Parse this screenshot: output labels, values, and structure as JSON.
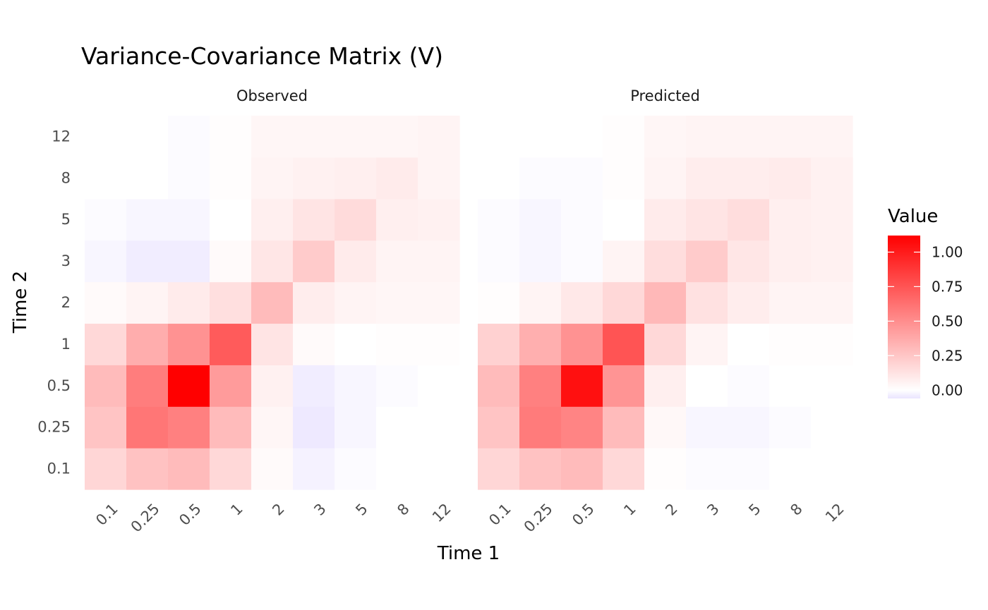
{
  "chart_data": {
    "type": "heatmap",
    "title": "Variance-Covariance Matrix (V)",
    "xlabel": "Time 1",
    "ylabel": "Time 2",
    "categories": [
      "0.1",
      "0.25",
      "0.5",
      "1",
      "2",
      "3",
      "5",
      "8",
      "12"
    ],
    "colorscale": {
      "low": "#EAE4FF",
      "mid": "#FFFFFF",
      "high": "#FF0000",
      "midpoint": 0,
      "range": [
        -0.06,
        1.12
      ]
    },
    "legend": {
      "title": "Value",
      "position": "right",
      "ticks": [
        "0.00",
        "0.25",
        "0.50",
        "0.75",
        "1.00"
      ],
      "tick_values": [
        0,
        0.25,
        0.5,
        0.75,
        1.0
      ]
    },
    "panels": [
      {
        "name": "Observed",
        "rows": [
          {
            "y": "0.1",
            "values": [
              0.18,
              0.27,
              0.3,
              0.17,
              0.02,
              -0.03,
              -0.01,
              0.0,
              0.0
            ]
          },
          {
            "y": "0.25",
            "values": [
              0.26,
              0.6,
              0.56,
              0.3,
              0.04,
              -0.05,
              -0.02,
              0.0,
              0.0
            ]
          },
          {
            "y": "0.5",
            "values": [
              0.3,
              0.57,
              1.12,
              0.44,
              0.06,
              -0.04,
              -0.02,
              -0.01,
              0.0
            ]
          },
          {
            "y": "1",
            "values": [
              0.17,
              0.36,
              0.48,
              0.72,
              0.12,
              0.02,
              0.0,
              0.01,
              0.01
            ]
          },
          {
            "y": "2",
            "values": [
              0.02,
              0.05,
              0.09,
              0.14,
              0.3,
              0.08,
              0.05,
              0.04,
              0.04
            ]
          },
          {
            "y": "3",
            "values": [
              -0.02,
              -0.04,
              -0.04,
              0.02,
              0.11,
              0.23,
              0.09,
              0.05,
              0.05
            ]
          },
          {
            "y": "5",
            "values": [
              -0.01,
              -0.02,
              -0.02,
              0.0,
              0.07,
              0.12,
              0.16,
              0.07,
              0.06
            ]
          },
          {
            "y": "8",
            "values": [
              0.0,
              0.0,
              -0.01,
              0.01,
              0.05,
              0.06,
              0.07,
              0.09,
              0.05
            ]
          },
          {
            "y": "12",
            "values": [
              0.0,
              0.0,
              -0.01,
              0.01,
              0.04,
              0.04,
              0.04,
              0.04,
              0.05
            ]
          }
        ]
      },
      {
        "name": "Predicted",
        "rows": [
          {
            "y": "0.1",
            "values": [
              0.18,
              0.27,
              0.3,
              0.17,
              0.01,
              -0.01,
              -0.01,
              0.0,
              0.0
            ]
          },
          {
            "y": "0.25",
            "values": [
              0.26,
              0.58,
              0.54,
              0.3,
              0.03,
              -0.02,
              -0.02,
              -0.01,
              0.0
            ]
          },
          {
            "y": "0.5",
            "values": [
              0.3,
              0.56,
              1.05,
              0.47,
              0.07,
              0.0,
              -0.01,
              0.0,
              0.0
            ]
          },
          {
            "y": "1",
            "values": [
              0.2,
              0.35,
              0.48,
              0.75,
              0.17,
              0.05,
              0.0,
              0.01,
              0.01
            ]
          },
          {
            "y": "2",
            "values": [
              0.01,
              0.05,
              0.1,
              0.17,
              0.31,
              0.13,
              0.08,
              0.05,
              0.05
            ]
          },
          {
            "y": "3",
            "values": [
              -0.01,
              -0.02,
              -0.01,
              0.05,
              0.15,
              0.23,
              0.11,
              0.07,
              0.06
            ]
          },
          {
            "y": "5",
            "values": [
              -0.01,
              -0.02,
              -0.01,
              0.0,
              0.09,
              0.12,
              0.15,
              0.07,
              0.06
            ]
          },
          {
            "y": "8",
            "values": [
              0.0,
              -0.01,
              -0.01,
              0.01,
              0.05,
              0.08,
              0.08,
              0.09,
              0.06
            ]
          },
          {
            "y": "12",
            "values": [
              0.0,
              0.0,
              0.0,
              0.01,
              0.04,
              0.05,
              0.05,
              0.05,
              0.05
            ]
          }
        ]
      }
    ]
  }
}
